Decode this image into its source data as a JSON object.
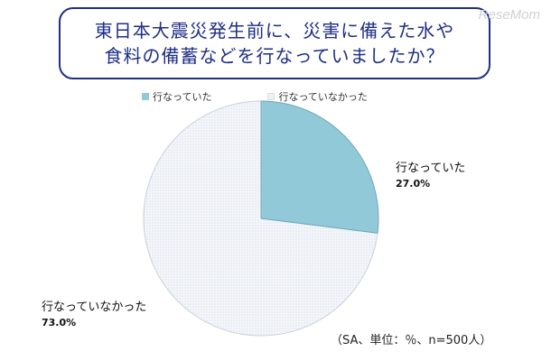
{
  "title": {
    "line1": "東日本大震災発生前に、災害に備えた水や",
    "line2": "食料の備蓄などを行なっていましたか？"
  },
  "watermark": "ReseMom",
  "note": "（SA、単位：％、n=500人）",
  "colors": {
    "yes": "#91c9d8",
    "no": "#eef1f6",
    "title_border": "#1f2f86"
  },
  "chart_data": {
    "type": "pie",
    "title": "東日本大震災発生前に、災害に備えた水や食料の備蓄などを行なっていましたか？",
    "legend": [
      "行なっていた",
      "行なっていなかった"
    ],
    "legend_position": "top",
    "slices": [
      {
        "label": "行なっていた",
        "value": 27.0,
        "value_label": "27.0%"
      },
      {
        "label": "行なっていなかった",
        "value": 73.0,
        "value_label": "73.0%"
      }
    ]
  }
}
